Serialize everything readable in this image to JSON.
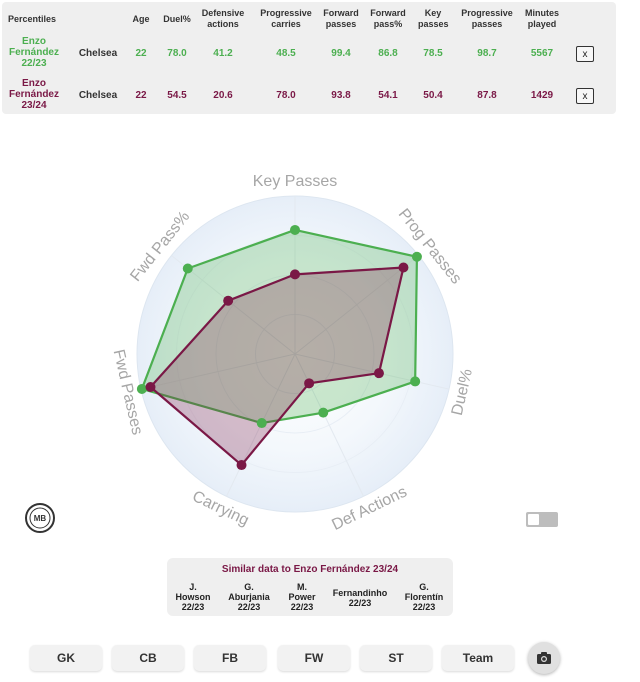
{
  "table": {
    "headers": {
      "percentiles": "Percentiles",
      "age": "Age",
      "duel": "Duel%",
      "defensive": "Defensive actions",
      "progressive_carries": "Progressive carries",
      "forward_passes": "Forward passes",
      "forward_pass_pct": "Forward pass%",
      "key_passes": "Key passes",
      "progressive_passes": "Progressive passes",
      "minutes": "Minutes played"
    },
    "rows": [
      {
        "name": "Enzo Fernández 22/23",
        "team": "Chelsea",
        "age": "22",
        "duel": "78.0",
        "def": "41.2",
        "carries": "48.5",
        "fwd": "99.4",
        "fwd_pct": "86.8",
        "key": "78.5",
        "prog": "98.7",
        "minutes": "5567",
        "remove": "x",
        "color": "#4caf50"
      },
      {
        "name": "Enzo Fernández 23/24",
        "team": "Chelsea",
        "age": "22",
        "duel": "54.5",
        "def": "20.6",
        "carries": "78.0",
        "fwd": "93.8",
        "fwd_pct": "54.1",
        "key": "50.4",
        "prog": "87.8",
        "minutes": "1429",
        "remove": "x",
        "color": "#7a1846"
      }
    ]
  },
  "radar": {
    "axes": [
      "Key Passes",
      "Prog Passes",
      "Duel%",
      "Def Actions",
      "Carrying",
      "Fwd Passes",
      "Fwd Pass%"
    ],
    "series": [
      {
        "values": [
          78.5,
          98.7,
          78.0,
          41.2,
          48.5,
          99.4,
          86.8
        ],
        "color": "#4caf50"
      },
      {
        "values": [
          50.4,
          87.8,
          54.5,
          20.6,
          78.0,
          93.8,
          54.1
        ],
        "color": "#7a1846"
      }
    ]
  },
  "similar": {
    "title": "Similar data to Enzo Fernández 23/24",
    "players": [
      {
        "line1": "J.",
        "line2": "Howson",
        "line3": "22/23"
      },
      {
        "line1": "G.",
        "line2": "Aburjania",
        "line3": "22/23"
      },
      {
        "line1": "M.",
        "line2": "Power",
        "line3": "22/23"
      },
      {
        "line1": "Fernandinho",
        "line2": "22/23",
        "line3": ""
      },
      {
        "line1": "G.",
        "line2": "Florentín",
        "line3": "22/23"
      }
    ]
  },
  "positions": [
    "GK",
    "CB",
    "FB",
    "FW",
    "ST",
    "Team"
  ],
  "logo_text": "MB",
  "icons": {
    "camera": "camera-icon",
    "logo": "mb-logo-icon",
    "toggle": "toggle-switch"
  }
}
